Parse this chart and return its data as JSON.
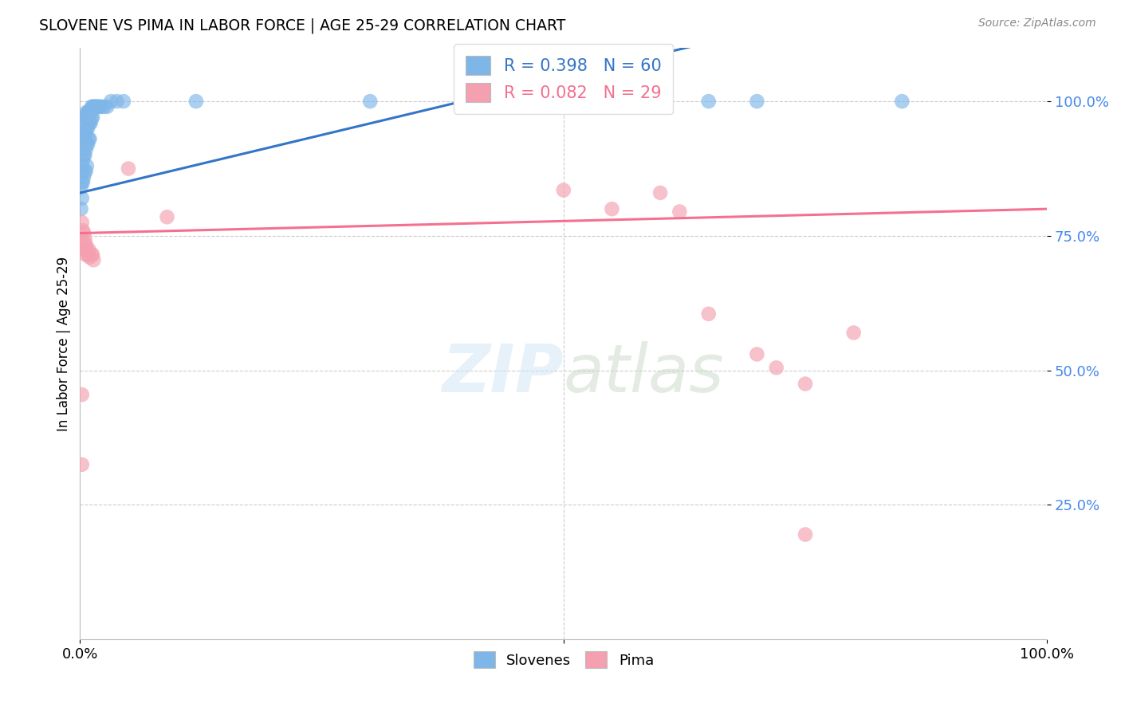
{
  "title": "SLOVENE VS PIMA IN LABOR FORCE | AGE 25-29 CORRELATION CHART",
  "source": "Source: ZipAtlas.com",
  "ylabel": "In Labor Force | Age 25-29",
  "ytick_labels": [
    "25.0%",
    "50.0%",
    "75.0%",
    "100.0%"
  ],
  "ytick_values": [
    0.25,
    0.5,
    0.75,
    1.0
  ],
  "xlim": [
    0.0,
    1.0
  ],
  "ylim": [
    0.0,
    1.1
  ],
  "slovene_R": 0.398,
  "slovene_N": 60,
  "pima_R": 0.082,
  "pima_N": 29,
  "slovene_color": "#7EB6E8",
  "pima_color": "#F4A0B0",
  "slovene_line_color": "#3375C8",
  "pima_line_color": "#F47090",
  "background_color": "#FFFFFF",
  "grid_color": "#CCCCCC",
  "slovene_scatter": [
    [
      0.001,
      0.84
    ],
    [
      0.001,
      0.8
    ],
    [
      0.002,
      0.92
    ],
    [
      0.002,
      0.88
    ],
    [
      0.002,
      0.85
    ],
    [
      0.002,
      0.82
    ],
    [
      0.003,
      0.96
    ],
    [
      0.003,
      0.93
    ],
    [
      0.003,
      0.89
    ],
    [
      0.003,
      0.85
    ],
    [
      0.004,
      0.97
    ],
    [
      0.004,
      0.94
    ],
    [
      0.004,
      0.9
    ],
    [
      0.004,
      0.86
    ],
    [
      0.005,
      0.97
    ],
    [
      0.005,
      0.94
    ],
    [
      0.005,
      0.9
    ],
    [
      0.005,
      0.87
    ],
    [
      0.006,
      0.97
    ],
    [
      0.006,
      0.94
    ],
    [
      0.006,
      0.91
    ],
    [
      0.006,
      0.87
    ],
    [
      0.007,
      0.98
    ],
    [
      0.007,
      0.95
    ],
    [
      0.007,
      0.92
    ],
    [
      0.007,
      0.88
    ],
    [
      0.008,
      0.98
    ],
    [
      0.008,
      0.95
    ],
    [
      0.008,
      0.92
    ],
    [
      0.009,
      0.98
    ],
    [
      0.009,
      0.96
    ],
    [
      0.009,
      0.93
    ],
    [
      0.01,
      0.98
    ],
    [
      0.01,
      0.96
    ],
    [
      0.01,
      0.93
    ],
    [
      0.011,
      0.98
    ],
    [
      0.011,
      0.96
    ],
    [
      0.012,
      0.99
    ],
    [
      0.012,
      0.97
    ],
    [
      0.013,
      0.99
    ],
    [
      0.013,
      0.97
    ],
    [
      0.014,
      0.99
    ],
    [
      0.015,
      0.99
    ],
    [
      0.016,
      0.99
    ],
    [
      0.017,
      0.99
    ],
    [
      0.018,
      0.99
    ],
    [
      0.019,
      0.99
    ],
    [
      0.02,
      0.99
    ],
    [
      0.022,
      0.99
    ],
    [
      0.025,
      0.99
    ],
    [
      0.028,
      0.99
    ],
    [
      0.032,
      1.0
    ],
    [
      0.038,
      1.0
    ],
    [
      0.045,
      1.0
    ],
    [
      0.12,
      1.0
    ],
    [
      0.3,
      1.0
    ],
    [
      0.55,
      1.0
    ],
    [
      0.65,
      1.0
    ],
    [
      0.7,
      1.0
    ],
    [
      0.85,
      1.0
    ]
  ],
  "pima_scatter": [
    [
      0.002,
      0.775
    ],
    [
      0.003,
      0.76
    ],
    [
      0.004,
      0.755
    ],
    [
      0.004,
      0.735
    ],
    [
      0.005,
      0.745
    ],
    [
      0.005,
      0.725
    ],
    [
      0.006,
      0.735
    ],
    [
      0.006,
      0.715
    ],
    [
      0.007,
      0.725
    ],
    [
      0.008,
      0.715
    ],
    [
      0.009,
      0.725
    ],
    [
      0.01,
      0.71
    ],
    [
      0.012,
      0.715
    ],
    [
      0.013,
      0.715
    ],
    [
      0.014,
      0.705
    ],
    [
      0.05,
      0.875
    ],
    [
      0.09,
      0.785
    ],
    [
      0.002,
      0.455
    ],
    [
      0.002,
      0.325
    ],
    [
      0.5,
      0.835
    ],
    [
      0.55,
      0.8
    ],
    [
      0.6,
      0.83
    ],
    [
      0.62,
      0.795
    ],
    [
      0.65,
      0.605
    ],
    [
      0.7,
      0.53
    ],
    [
      0.72,
      0.505
    ],
    [
      0.75,
      0.475
    ],
    [
      0.8,
      0.57
    ],
    [
      0.75,
      0.195
    ]
  ],
  "slovene_trend": [
    0.0,
    1.0
  ],
  "pima_trend_y": [
    0.755,
    0.8
  ]
}
